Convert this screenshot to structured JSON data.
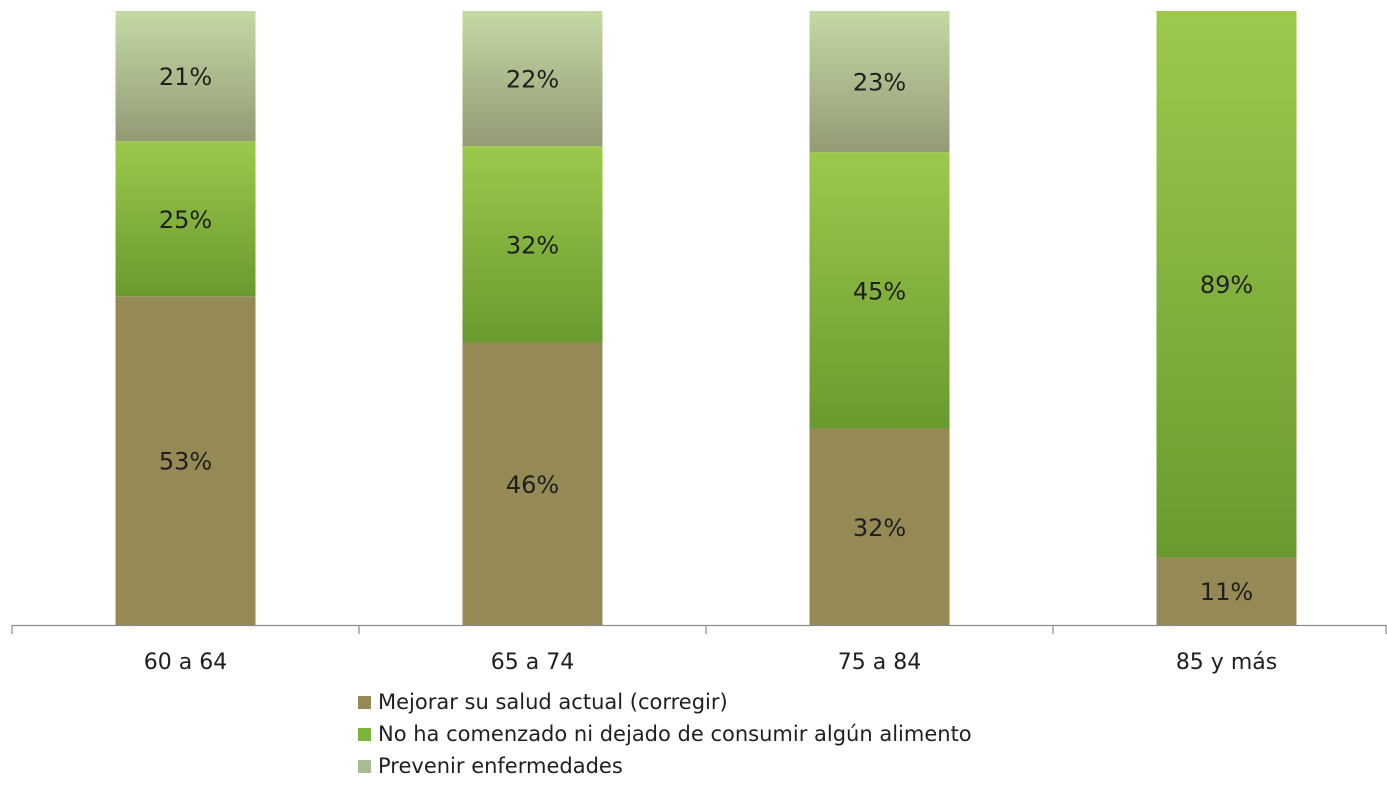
{
  "chart_data": {
    "type": "bar",
    "stacked": true,
    "percent_stacked": true,
    "categories": [
      "60 a 64",
      "65 a 74",
      "75 a 84",
      "85 y más"
    ],
    "series": [
      {
        "name": "Mejorar su salud actual (corregir)",
        "values": [
          53,
          46,
          32,
          11
        ],
        "labels": [
          "53%",
          "46%",
          "32%",
          "11%"
        ],
        "color": "#958a55"
      },
      {
        "name": "No ha comenzado ni dejado de consumir algún alimento",
        "values": [
          25,
          32,
          45,
          89
        ],
        "labels": [
          "25%",
          "32%",
          "45%",
          "89%"
        ],
        "color": "#7db43a"
      },
      {
        "name": "Prevenir enfermedades",
        "values": [
          21,
          22,
          23,
          0
        ],
        "labels": [
          "21%",
          "22%",
          "23%",
          ""
        ],
        "color": "#a9bb95"
      }
    ],
    "ylim": [
      0,
      100
    ],
    "legend_position": "bottom",
    "grid": false
  }
}
